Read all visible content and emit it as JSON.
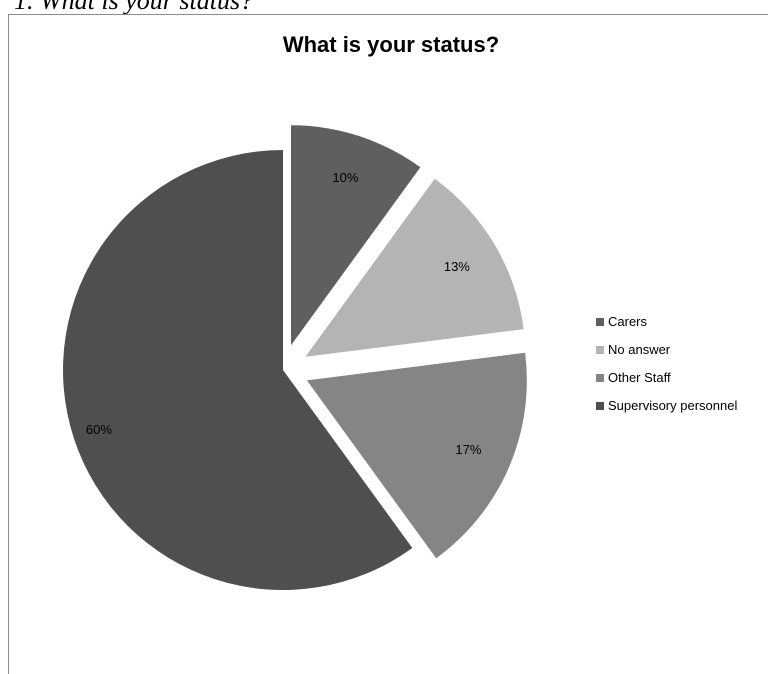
{
  "document": {
    "heading": "1.   What is your status?"
  },
  "chart_data": {
    "type": "pie",
    "title": "What is your status?",
    "labels": [
      "Carers",
      "No answer",
      "Other Staff",
      "Supervisory personnel"
    ],
    "values": [
      10,
      13,
      17,
      60
    ],
    "data_labels": [
      "10%",
      "13%",
      "17%",
      "60%"
    ],
    "colors": [
      "#5f5f5f",
      "#b4b4b4",
      "#858585",
      "#4f4f4f"
    ],
    "exploded": [
      true,
      true,
      true,
      false
    ],
    "start_angle_deg": 0,
    "direction": "clockwise",
    "legend": "right"
  }
}
